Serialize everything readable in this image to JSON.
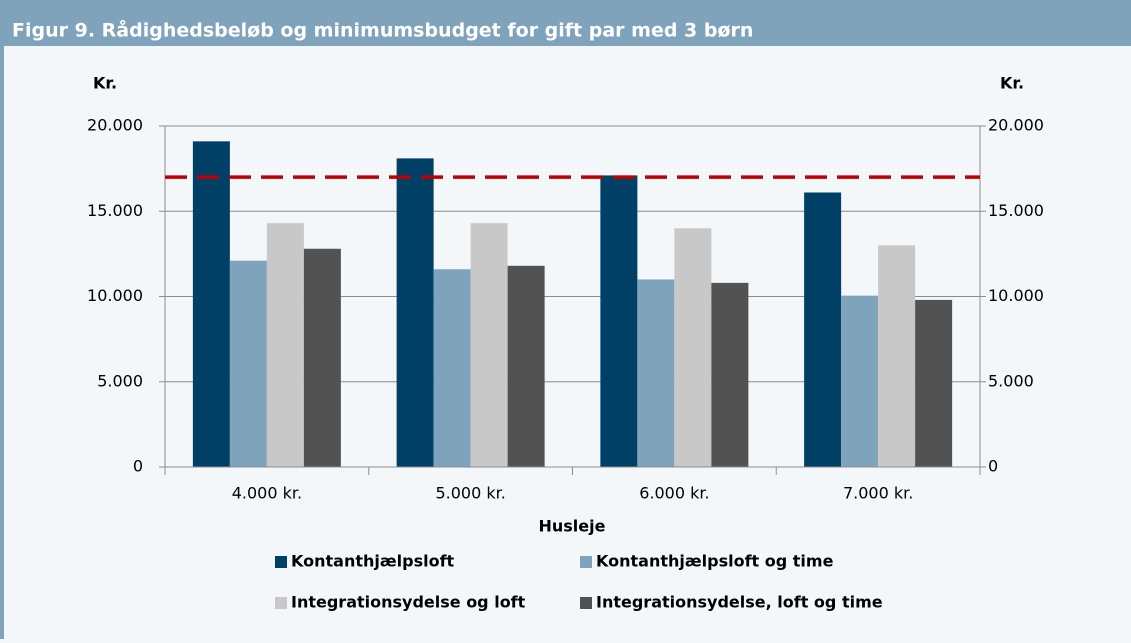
{
  "chart_data": {
    "type": "bar",
    "title": "Figur 9. Rådighedsbeløb og minimumsbudget for gift par med 3 børn",
    "y_label": "Kr.",
    "y2_label": "Kr.",
    "x_label": "Husleje",
    "categories": [
      "4.000 kr.",
      "5.000 kr.",
      "6.000 kr.",
      "7.000 kr."
    ],
    "series": [
      {
        "name": "Kontanthjælpsloft",
        "color": "#003f66",
        "values": [
          19100,
          18100,
          17100,
          16100
        ]
      },
      {
        "name": "Kontanthjælpsloft og time",
        "color": "#7fa3bb",
        "values": [
          12100,
          11600,
          11000,
          10050
        ]
      },
      {
        "name": "Integrationsydelse og loft",
        "color": "#c8c8c8",
        "values": [
          14300,
          14300,
          14000,
          13000
        ]
      },
      {
        "name": "Integrationsydelse, loft og time",
        "color": "#525252",
        "values": [
          12800,
          11800,
          10800,
          9800
        ]
      }
    ],
    "reference_line": {
      "value": 17000,
      "color": "#c00000"
    },
    "ylim": [
      0,
      20000
    ],
    "yticks": [
      0,
      {
        "value": 5000,
        "label": "5.000"
      },
      {
        "value": 10000,
        "label": "10.000"
      },
      {
        "value": 15000,
        "label": "15.000"
      },
      {
        "value": 20000,
        "label": "20.000"
      }
    ],
    "y2lim": [
      0,
      20000
    ],
    "y2ticks": [
      0,
      {
        "value": 5000,
        "label": "5.000"
      },
      {
        "value": 10000,
        "label": "10.000"
      },
      {
        "value": 15000,
        "label": "15.000"
      },
      {
        "value": 20000,
        "label": "20.000"
      }
    ],
    "grid": true,
    "legend": "bottom"
  }
}
